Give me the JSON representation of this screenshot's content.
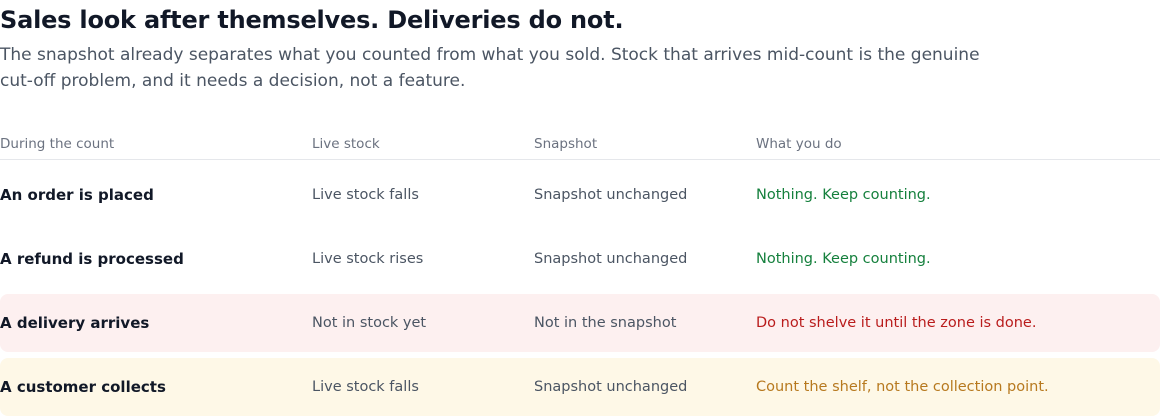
{
  "heading": {
    "title": "Sales look after themselves. Deliveries do not.",
    "subtitle": "The snapshot already separates what you counted from what you sold. Stock that arrives mid-count is the genuine cut-off problem, and it needs a decision, not a feature."
  },
  "table": {
    "columns": [
      "During the count",
      "Live stock",
      "Snapshot",
      "What you do"
    ],
    "rows": [
      {
        "event": "An order is placed",
        "live_stock": "Live stock falls",
        "snapshot": "Snapshot unchanged",
        "action": "Nothing. Keep counting.",
        "tone": "neutral",
        "action_tone": "success"
      },
      {
        "event": "A refund is processed",
        "live_stock": "Live stock rises",
        "snapshot": "Snapshot unchanged",
        "action": "Nothing. Keep counting.",
        "tone": "neutral",
        "action_tone": "success"
      },
      {
        "event": "A delivery arrives",
        "live_stock": "Not in stock yet",
        "snapshot": "Not in the snapshot",
        "action": "Do not shelve it until the zone is done.",
        "tone": "danger",
        "action_tone": "danger"
      },
      {
        "event": "A customer collects",
        "live_stock": "Live stock falls",
        "snapshot": "Snapshot unchanged",
        "action": "Count the shelf, not the collection point.",
        "tone": "warning",
        "action_tone": "warning"
      }
    ]
  },
  "colors": {
    "success": "#15803d",
    "danger": "#b91c1c",
    "warning": "#b7791f",
    "danger_bg": "#fdf0f0",
    "warning_bg": "#fef8e7"
  }
}
